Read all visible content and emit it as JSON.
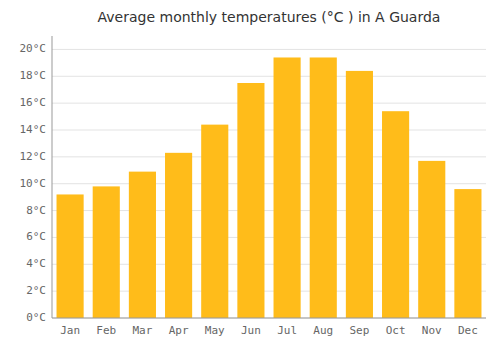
{
  "chart_data": {
    "type": "bar",
    "title": "Average monthly temperatures (°C ) in A Guarda",
    "categories": [
      "Jan",
      "Feb",
      "Mar",
      "Apr",
      "May",
      "Jun",
      "Jul",
      "Aug",
      "Sep",
      "Oct",
      "Nov",
      "Dec"
    ],
    "values": [
      9.2,
      9.8,
      10.9,
      12.3,
      14.4,
      17.5,
      19.4,
      19.4,
      18.4,
      15.4,
      11.7,
      9.6
    ],
    "color": "#FFBC1A",
    "ylim": [
      0,
      21
    ],
    "yticks": [
      {
        "value": 0,
        "label": "0°C"
      },
      {
        "value": 2,
        "label": "2°C"
      },
      {
        "value": 4,
        "label": "4°C"
      },
      {
        "value": 6,
        "label": "6°C"
      },
      {
        "value": 8,
        "label": "8°C"
      },
      {
        "value": 10,
        "label": "10°C"
      },
      {
        "value": 12,
        "label": "12°C"
      },
      {
        "value": 14,
        "label": "14°C"
      },
      {
        "value": 16,
        "label": "16°C"
      },
      {
        "value": 18,
        "label": "18°C"
      },
      {
        "value": 20,
        "label": "20°C"
      }
    ],
    "grid": true
  }
}
